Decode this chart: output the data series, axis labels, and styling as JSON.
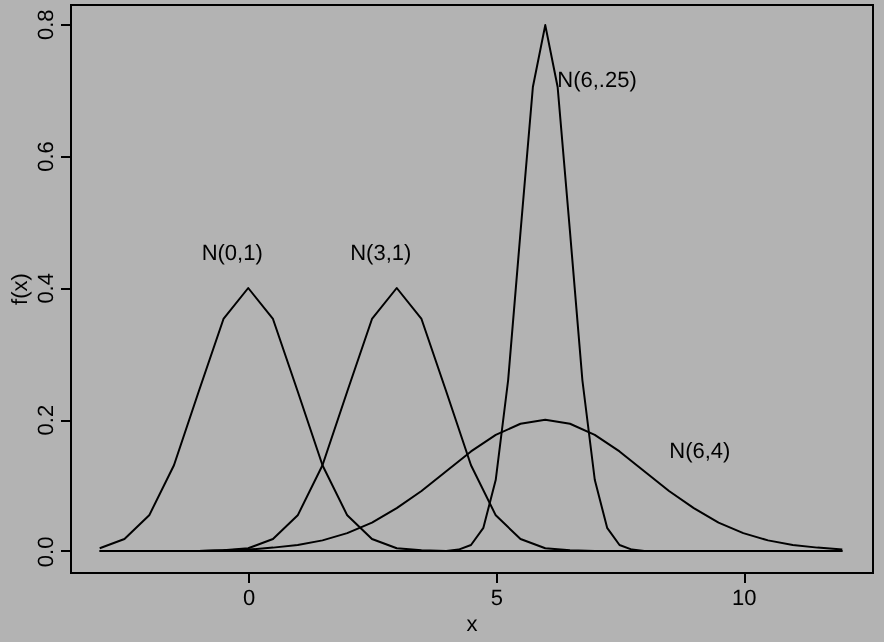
{
  "chart_data": {
    "type": "line",
    "xlabel": "x",
    "ylabel": "f(x)",
    "xlim": [
      -3.6,
      12.6
    ],
    "ylim": [
      -0.032,
      0.83
    ],
    "xticks": [
      0,
      5,
      10
    ],
    "yticks": [
      {
        "value": 0,
        "label": "0.0"
      },
      {
        "value": 0.2,
        "label": "0.2"
      },
      {
        "value": 0.4,
        "label": "0.4"
      },
      {
        "value": 0.6,
        "label": "0.6"
      },
      {
        "value": 0.8,
        "label": "0.8"
      }
    ],
    "grid": false,
    "legend": false,
    "marker": "none",
    "line_style": "solid",
    "series": [
      {
        "name": "N(0,1)",
        "color": "#000000",
        "x": [
          -3,
          -2.5,
          -2,
          -1.5,
          -1,
          -0.5,
          0,
          0.5,
          1,
          1.5,
          2,
          2.5,
          3,
          3.5,
          4,
          12
        ],
        "values": [
          0.004,
          0.018,
          0.054,
          0.13,
          0.242,
          0.352,
          0.399,
          0.352,
          0.242,
          0.13,
          0.054,
          0.018,
          0.004,
          0.001,
          0,
          0
        ]
      },
      {
        "name": "N(3,1)",
        "color": "#000000",
        "x": [
          -3,
          -1,
          -0.5,
          0,
          0.5,
          1,
          1.5,
          2,
          2.5,
          3,
          3.5,
          4,
          4.5,
          5,
          5.5,
          6,
          6.5,
          7,
          12
        ],
        "values": [
          0,
          0,
          0.001,
          0.004,
          0.018,
          0.054,
          0.13,
          0.242,
          0.352,
          0.399,
          0.352,
          0.242,
          0.13,
          0.054,
          0.018,
          0.004,
          0.001,
          0,
          0
        ]
      },
      {
        "name": "N(6,.25)",
        "color": "#000000",
        "x": [
          -3,
          4,
          4.25,
          4.5,
          4.75,
          5,
          5.25,
          5.5,
          5.75,
          6,
          6.25,
          6.5,
          6.75,
          7,
          7.25,
          7.5,
          7.75,
          8,
          12
        ],
        "values": [
          0,
          0,
          0.002,
          0.009,
          0.035,
          0.108,
          0.259,
          0.484,
          0.704,
          0.798,
          0.704,
          0.484,
          0.259,
          0.108,
          0.035,
          0.009,
          0.002,
          0,
          0
        ]
      },
      {
        "name": "N(6,4)",
        "color": "#000000",
        "x": [
          -3,
          -1,
          0,
          0.5,
          1,
          1.5,
          2,
          2.5,
          3,
          3.5,
          4,
          4.5,
          5,
          5.5,
          6,
          6.5,
          7,
          7.5,
          8,
          8.5,
          9,
          9.5,
          10,
          10.5,
          11,
          11.5,
          12
        ],
        "values": [
          0,
          0,
          0.002,
          0.005,
          0.009,
          0.016,
          0.027,
          0.043,
          0.065,
          0.091,
          0.121,
          0.151,
          0.176,
          0.193,
          0.199,
          0.193,
          0.176,
          0.151,
          0.121,
          0.091,
          0.065,
          0.043,
          0.027,
          0.016,
          0.009,
          0.005,
          0.002
        ]
      }
    ]
  }
}
